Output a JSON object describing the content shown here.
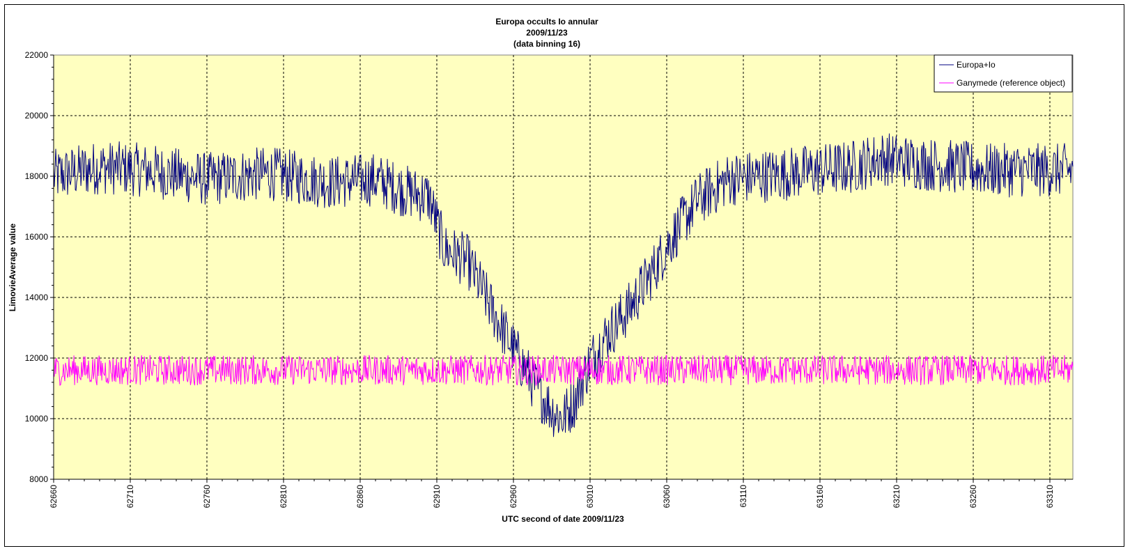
{
  "chart_data": {
    "type": "line",
    "title_lines": [
      "Europa occults Io annular",
      "2009/11/23",
      "(data binning 16)"
    ],
    "xlabel": "UTC second  of date 2009/11/23",
    "ylabel": "LimovieAverage value",
    "xlim": [
      62660,
      63325
    ],
    "ylim": [
      8000,
      22000
    ],
    "x_ticks": [
      62660,
      62710,
      62760,
      62810,
      62860,
      62910,
      62960,
      63010,
      63060,
      63110,
      63160,
      63210,
      63260,
      63310
    ],
    "y_ticks": [
      8000,
      10000,
      12000,
      14000,
      16000,
      18000,
      20000,
      22000
    ],
    "grid": true,
    "legend_position": "top-right",
    "plot_background": "#ffffc0",
    "series": [
      {
        "name": "Europa+Io",
        "color": "#000080",
        "profile": [
          [
            62660,
            18000
          ],
          [
            62690,
            18300
          ],
          [
            62720,
            18200
          ],
          [
            62760,
            17900
          ],
          [
            62800,
            18100
          ],
          [
            62840,
            17800
          ],
          [
            62870,
            17900
          ],
          [
            62890,
            17500
          ],
          [
            62905,
            17300
          ],
          [
            62915,
            15600
          ],
          [
            62930,
            15200
          ],
          [
            62945,
            13700
          ],
          [
            62960,
            12300
          ],
          [
            62975,
            11000
          ],
          [
            62985,
            10300
          ],
          [
            62992,
            10000
          ],
          [
            63000,
            10600
          ],
          [
            63010,
            11900
          ],
          [
            63020,
            12700
          ],
          [
            63035,
            13600
          ],
          [
            63050,
            14800
          ],
          [
            63065,
            16100
          ],
          [
            63080,
            17200
          ],
          [
            63100,
            17900
          ],
          [
            63140,
            18100
          ],
          [
            63180,
            18300
          ],
          [
            63200,
            18600
          ],
          [
            63230,
            18400
          ],
          [
            63270,
            18200
          ],
          [
            63325,
            18200
          ]
        ],
        "noise_amplitude": 900
      },
      {
        "name": "Ganymede (reference object)",
        "color": "#ff00ff",
        "profile": [
          [
            62660,
            11600
          ],
          [
            63325,
            11600
          ]
        ],
        "noise_amplitude": 500
      }
    ]
  }
}
